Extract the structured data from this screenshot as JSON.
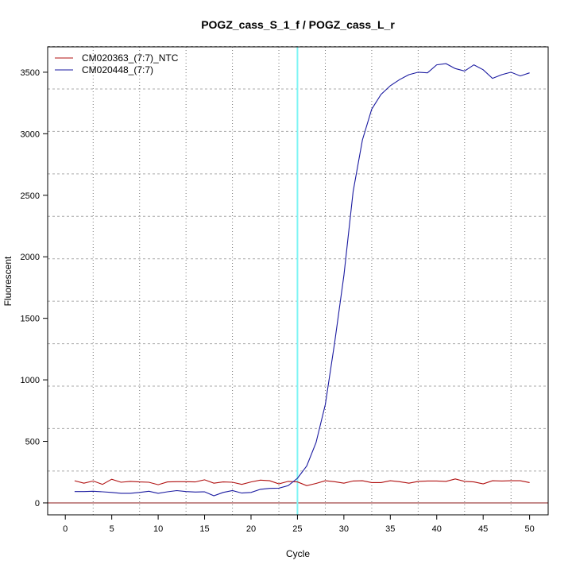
{
  "chart_data": {
    "type": "line",
    "title": "POGZ_cass_S_1_f / POGZ_cass_L_r",
    "xlabel": "Cycle",
    "ylabel": "Fluorescent",
    "xlim": [
      -1.9,
      52
    ],
    "ylim": [
      -97,
      3706
    ],
    "xticks": [
      0,
      5,
      10,
      15,
      20,
      25,
      30,
      35,
      40,
      45,
      50
    ],
    "yticks": [
      0,
      500,
      1000,
      1500,
      2000,
      2500,
      3000,
      3500
    ],
    "x_grid": [
      3,
      8,
      13,
      18,
      23,
      28,
      33,
      38,
      43,
      48
    ],
    "y_grid": [
      259,
      604,
      949,
      1294,
      1639,
      1984,
      2329,
      2674,
      3019,
      3364,
      3709
    ],
    "threshold_cycle": 25,
    "threshold_color": "#7ff5f5",
    "baseline_color": "#8b1a1a",
    "legend_position": "top-left",
    "x": [
      1,
      2,
      3,
      4,
      5,
      6,
      7,
      8,
      9,
      10,
      11,
      12,
      13,
      14,
      15,
      16,
      17,
      18,
      19,
      20,
      21,
      22,
      23,
      24,
      25,
      26,
      27,
      28,
      29,
      30,
      31,
      32,
      33,
      34,
      35,
      36,
      37,
      38,
      39,
      40,
      41,
      42,
      43,
      44,
      45,
      46,
      47,
      48,
      49,
      50
    ],
    "series": [
      {
        "name": "CM020363_(7:7)_NTC",
        "color": "#b01010",
        "values": [
          180,
          160,
          178,
          150,
          192,
          168,
          175,
          170,
          168,
          148,
          170,
          172,
          172,
          170,
          188,
          160,
          170,
          168,
          150,
          170,
          185,
          180,
          155,
          175,
          170,
          140,
          158,
          180,
          172,
          160,
          178,
          180,
          165,
          165,
          180,
          172,
          160,
          175,
          178,
          178,
          175,
          195,
          175,
          170,
          155,
          180,
          178,
          180,
          180,
          165
        ]
      },
      {
        "name": "CM020448_(7:7)",
        "color": "#1a1aa0",
        "values": [
          92,
          92,
          95,
          90,
          85,
          78,
          78,
          85,
          95,
          78,
          90,
          100,
          92,
          88,
          90,
          58,
          85,
          100,
          80,
          85,
          110,
          118,
          120,
          140,
          200,
          300,
          490,
          800,
          1300,
          1850,
          2530,
          2950,
          3200,
          3320,
          3390,
          3440,
          3480,
          3500,
          3495,
          3560,
          3570,
          3530,
          3510,
          3560,
          3520,
          3450,
          3480,
          3500,
          3470,
          3495
        ]
      }
    ]
  }
}
